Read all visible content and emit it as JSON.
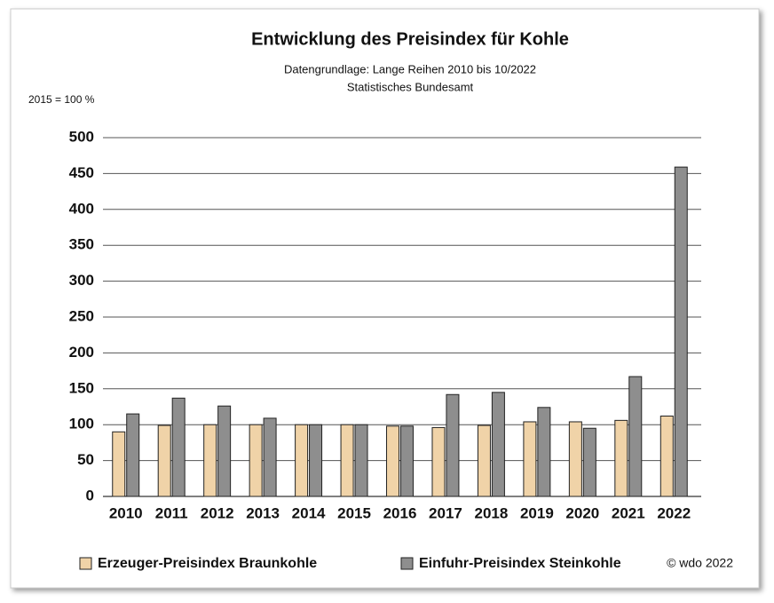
{
  "chart_data": {
    "type": "bar",
    "title": "Entwicklung des Preisindex für Kohle",
    "subtitle": [
      "Datengrundlage: Lange Reihen 2010 bis 10/2022",
      "Statistisches Bundesamt"
    ],
    "y_label": "2015 = 100 %",
    "source": "© wdo 2022",
    "categories": [
      "2010",
      "2011",
      "2012",
      "2013",
      "2014",
      "2015",
      "2016",
      "2017",
      "2018",
      "2019",
      "2020",
      "2021",
      "2022"
    ],
    "series": [
      {
        "name": "Erzeuger-Preisindex Braunkohle",
        "color": "#f0d3a8",
        "values": [
          90,
          99,
          100,
          100,
          100,
          100,
          98,
          96,
          99,
          104,
          104,
          106,
          112
        ]
      },
      {
        "name": "Einfuhr-Preisindex Steinkohle",
        "color": "#8e8e8e",
        "values": [
          115,
          137,
          126,
          109,
          100,
          100,
          98,
          142,
          145,
          124,
          95,
          167,
          459
        ]
      }
    ],
    "ylim": [
      0,
      500
    ],
    "yticks": [
      0,
      50,
      100,
      150,
      200,
      250,
      300,
      350,
      400,
      450,
      500
    ],
    "grid": true
  }
}
